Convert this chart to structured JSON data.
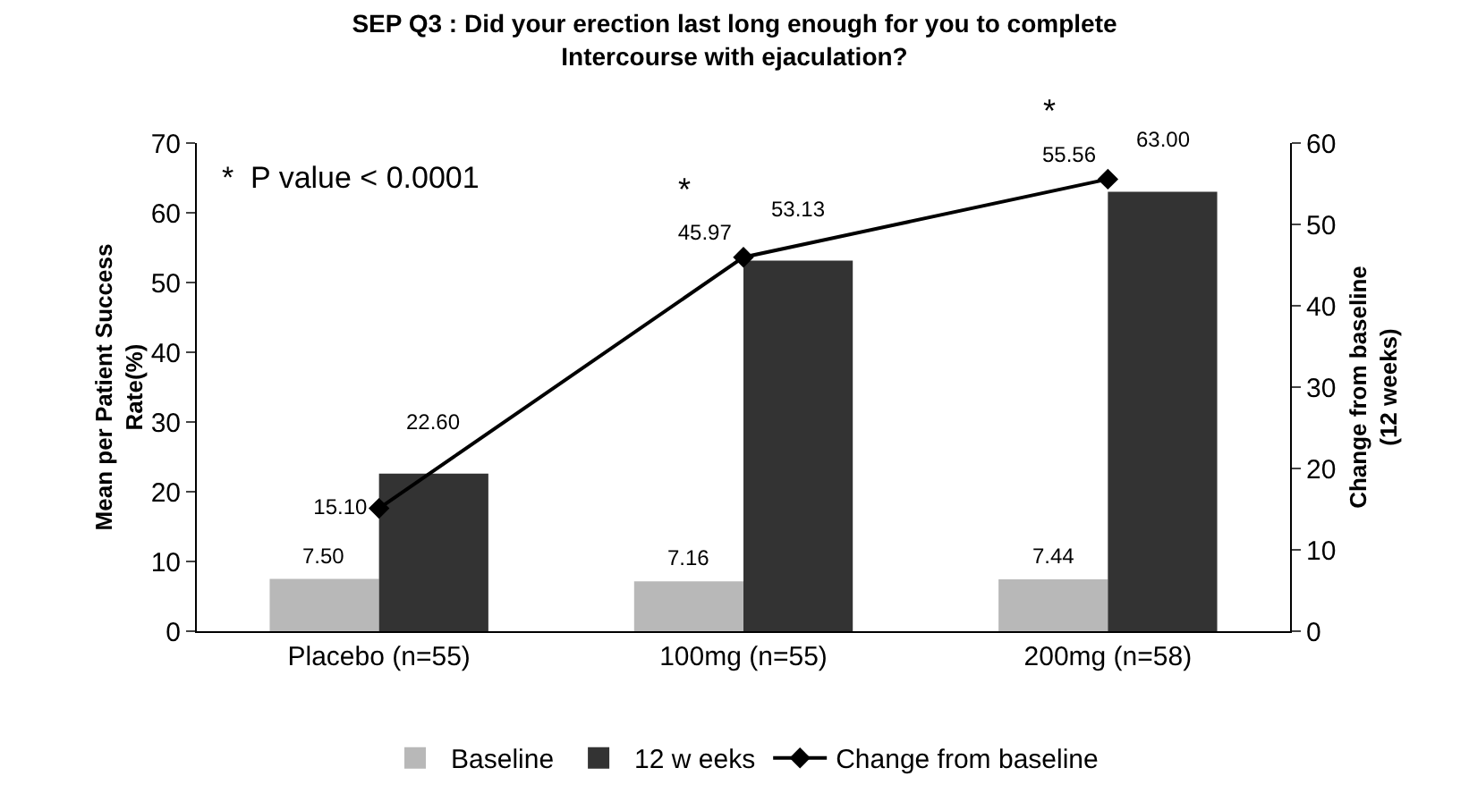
{
  "chart_data": {
    "type": "bar",
    "title": "SEP Q3 : Did your erection last long enough for you to complete\nIntercourse with ejaculation?",
    "ylabel": "Mean per Patient Success\nRate(%)",
    "y2label": "Change from baseline\n(12 weeks)",
    "categories": [
      "Placebo (n=55)",
      "100mg (n=55)",
      "200mg (n=58)"
    ],
    "series": [
      {
        "name": "Baseline",
        "color": "#b8b8b8",
        "values": [
          7.5,
          7.16,
          7.44
        ],
        "value_labels": [
          "7.50",
          "7.16",
          "7.44"
        ]
      },
      {
        "name": "12 w eeks",
        "color": "#333333",
        "values": [
          22.6,
          53.13,
          63.0
        ],
        "value_labels": [
          "22.60",
          "53.13",
          "63.00"
        ]
      },
      {
        "name": "Change from baseline",
        "type": "line",
        "axis": "y2",
        "color": "#000000",
        "values": [
          15.1,
          45.97,
          55.56
        ],
        "value_labels": [
          "15.10",
          "45.97",
          "55.56"
        ]
      }
    ],
    "ylim": [
      0,
      70
    ],
    "yticks": [
      0,
      10,
      20,
      30,
      40,
      50,
      60,
      70
    ],
    "y2lim": [
      0,
      60
    ],
    "y2ticks": [
      0,
      10,
      20,
      30,
      40,
      50,
      60
    ],
    "annotations": [
      "*  P value < 0.0001",
      "*",
      "*"
    ],
    "grid": false,
    "legend": "bottom",
    "marker": "diamond",
    "line_style": "solid"
  }
}
